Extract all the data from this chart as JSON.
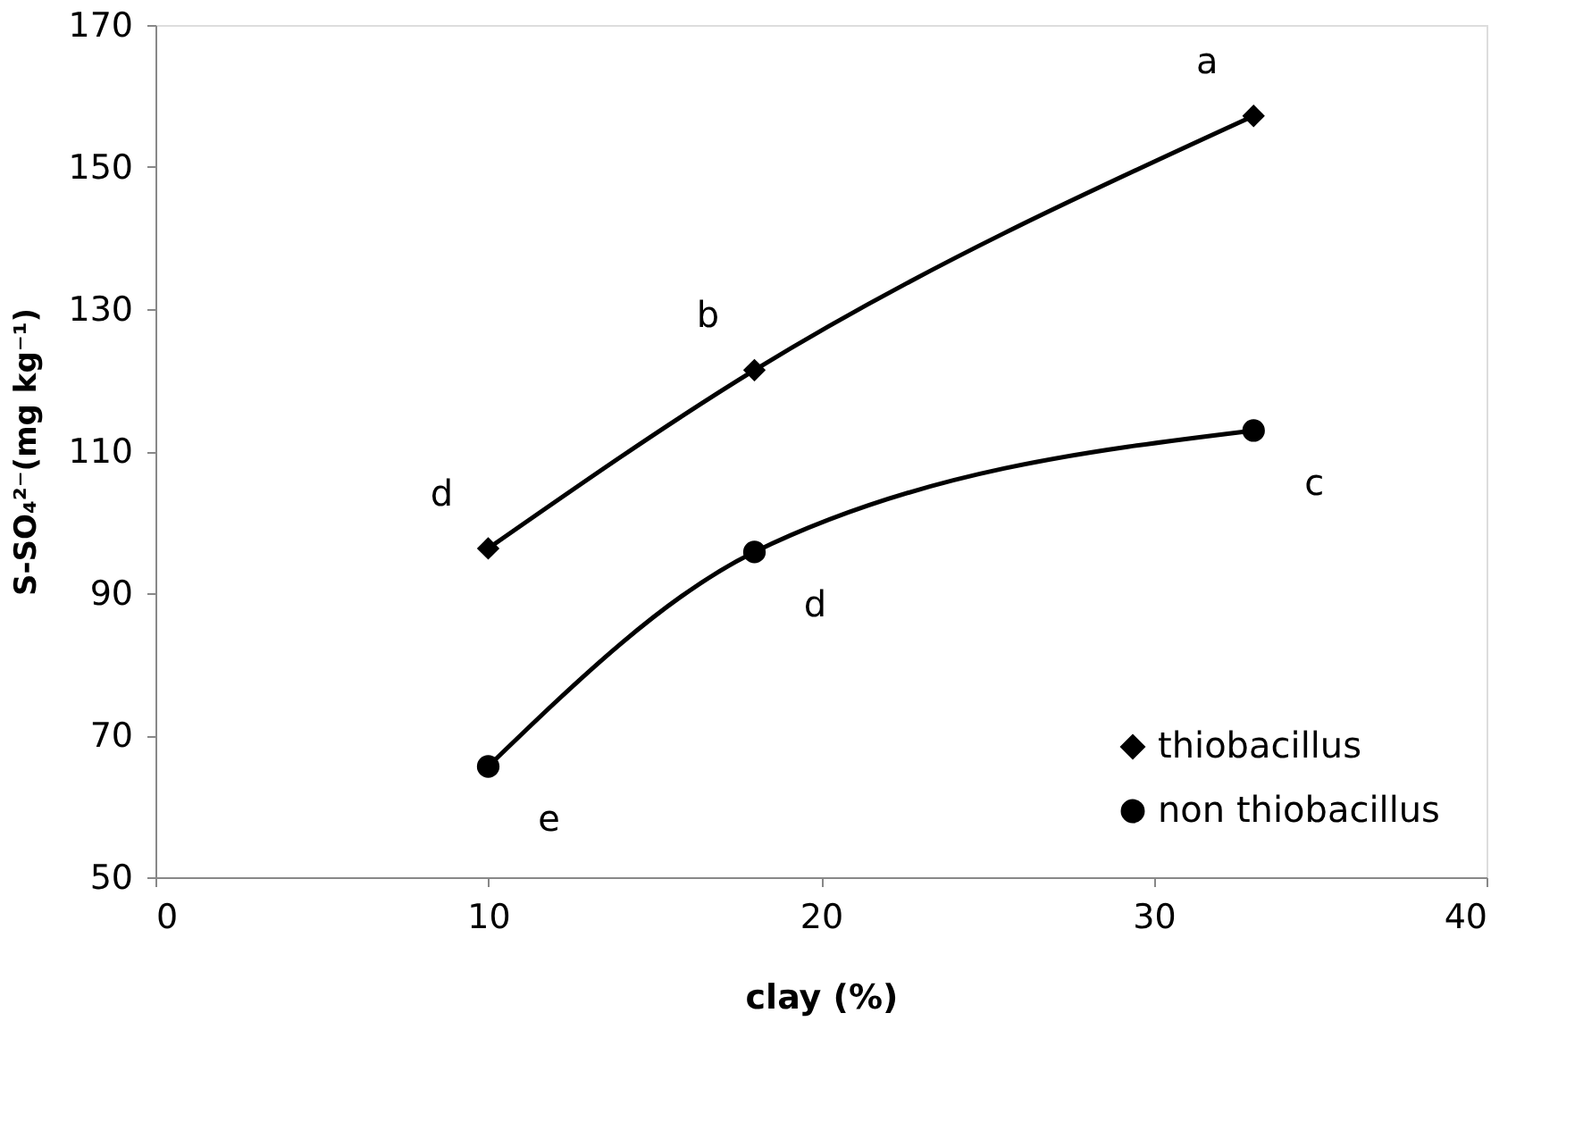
{
  "chart_data": {
    "type": "line",
    "xlabel": "clay (%)",
    "ylabel": "S-SO₄²⁻(mg kg⁻¹)",
    "x": [
      10,
      18,
      33
    ],
    "series": [
      {
        "name": "thiobacillus",
        "color": "#000000",
        "marker": "diamond",
        "values": [
          96.3,
          121.4,
          157.2
        ]
      },
      {
        "name": "non thiobacillus",
        "color": "#000000",
        "marker": "circle",
        "values": [
          65.6,
          95.8,
          112.9
        ]
      }
    ],
    "annotations": [
      {
        "text": "a",
        "x": 33,
        "y": 157.2
      },
      {
        "text": "b",
        "x": 18,
        "y": 121.4
      },
      {
        "text": "d",
        "x": 10,
        "y": 96.3
      },
      {
        "text": "c",
        "x": 33,
        "y": 112.9
      },
      {
        "text": "d",
        "x": 18,
        "y": 95.8
      },
      {
        "text": "e",
        "x": 10,
        "y": 65.6
      }
    ],
    "xlim": [
      0,
      40
    ],
    "xticks": [
      0,
      10,
      20,
      30,
      40
    ],
    "ylim": [
      50,
      170
    ],
    "yticks": [
      50,
      70,
      90,
      110,
      130,
      150,
      170
    ],
    "grid": false,
    "legend": "bottom right",
    "line_style": "solid"
  }
}
